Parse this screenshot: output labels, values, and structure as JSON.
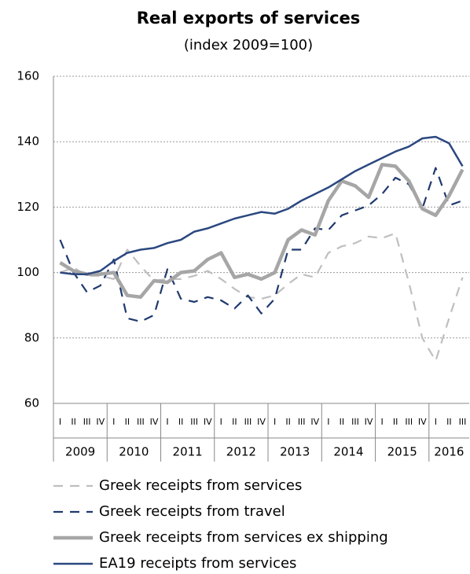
{
  "chart_data": {
    "type": "line",
    "title": "Real exports of services",
    "subtitle": "(index 2009=100)",
    "categories": [
      "I",
      "II",
      "III",
      "IV",
      "I",
      "II",
      "III",
      "IV",
      "I",
      "II",
      "III",
      "IV",
      "I",
      "II",
      "III",
      "IV",
      "I",
      "II",
      "III",
      "IV",
      "I",
      "II",
      "III",
      "IV",
      "I",
      "II",
      "III",
      "IV",
      "I",
      "II",
      "III"
    ],
    "years": [
      "2009",
      "2010",
      "2011",
      "2012",
      "2013",
      "2014",
      "2015",
      "2016"
    ],
    "ylim": [
      60,
      160
    ],
    "yticks": [
      60,
      80,
      100,
      120,
      140,
      160
    ],
    "grid": true,
    "series": [
      {
        "name": "Greek receipts from services",
        "color": "#bfbfbf",
        "style": "dashed",
        "values": [
          100,
          101.5,
          99,
          99,
          98,
          107,
          102,
          97.5,
          98,
          98,
          99,
          100.5,
          98,
          95,
          92.5,
          92,
          93,
          96.5,
          99.5,
          98.5,
          106,
          108,
          109,
          111,
          110.5,
          112,
          97,
          80,
          73,
          86,
          98.5
        ]
      },
      {
        "name": "Greek receipts from travel",
        "color": "#1f3a6e",
        "style": "dashed",
        "values": [
          110,
          100,
          94,
          96,
          104,
          86,
          85,
          87,
          101,
          92,
          91,
          92.5,
          91.5,
          89,
          93,
          87.5,
          92,
          107,
          107,
          113.5,
          113,
          117.5,
          119,
          120.5,
          124,
          129,
          127,
          119.5,
          132,
          120.5,
          122
        ]
      },
      {
        "name": "Greek receipts from services ex shipping",
        "color": "#a6a6a6",
        "style": "thick",
        "values": [
          103,
          100.5,
          99.5,
          99.5,
          100,
          93,
          92.5,
          97.5,
          97,
          100,
          100.5,
          104,
          106,
          98.5,
          99.5,
          98,
          100,
          110,
          113,
          111.5,
          122,
          128,
          126.5,
          123,
          133,
          132.5,
          128,
          119.5,
          117.5,
          123.5,
          131.5
        ]
      },
      {
        "name": "EA19 receipts from services",
        "color": "#2b4880",
        "style": "solid",
        "values": [
          100,
          99.5,
          99.5,
          100.5,
          103.5,
          106,
          107,
          107.5,
          109,
          110,
          112.5,
          113.5,
          115,
          116.5,
          117.5,
          118.5,
          118,
          119.5,
          122,
          124,
          126,
          128.5,
          131,
          133,
          135,
          137,
          138.5,
          141,
          141.5,
          139.5,
          132.5
        ]
      }
    ]
  }
}
